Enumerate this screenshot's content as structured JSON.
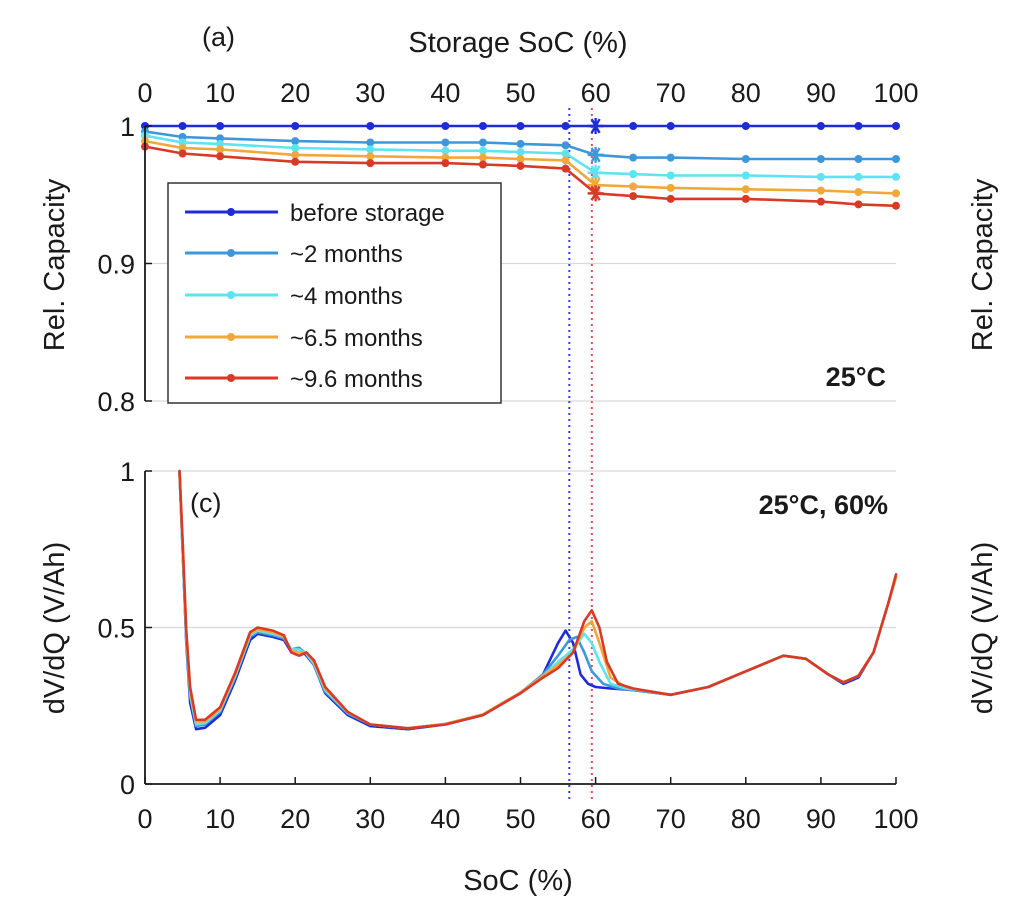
{
  "colors": {
    "before_storage": "#1f2bd6",
    "m2": "#3f97d9",
    "m4": "#5fe3f2",
    "m65": "#f1a83a",
    "m96": "#d93a28",
    "grid": "#d9d9d9",
    "axis": "#1a1a1a",
    "vline_blue": "#3a3aff",
    "vline_red": "#e05050"
  },
  "chart_data": [
    {
      "type": "line",
      "panel_label": "(a)",
      "title": "Storage SoC (%)",
      "ylabel": "Rel. Capacity",
      "annotation": "25°C",
      "xlim": [
        0,
        100
      ],
      "ylim": [
        0.8,
        1.0
      ],
      "xticks": [
        0,
        10,
        20,
        30,
        40,
        50,
        60,
        70,
        80,
        90,
        100
      ],
      "yticks": [
        0.8,
        0.9,
        1.0
      ],
      "ytick_labels": [
        "0.8",
        "0.9",
        "1"
      ],
      "x_axis_position": "top",
      "grid": "horizontal",
      "legend_position": "top-left",
      "x": [
        0,
        5,
        10,
        20,
        30,
        40,
        45,
        50,
        56,
        60,
        65,
        70,
        80,
        90,
        95,
        100
      ],
      "series": [
        {
          "name": "before storage",
          "color_key": "before_storage",
          "values": [
            1.0,
            1.0,
            1.0,
            1.0,
            1.0,
            1.0,
            1.0,
            1.0,
            1.0,
            1.0,
            1.0,
            1.0,
            1.0,
            1.0,
            1.0,
            1.0
          ]
        },
        {
          "name": "~2 months",
          "color_key": "m2",
          "values": [
            0.996,
            0.992,
            0.991,
            0.989,
            0.988,
            0.988,
            0.988,
            0.987,
            0.986,
            0.979,
            0.977,
            0.977,
            0.976,
            0.976,
            0.976,
            0.976
          ]
        },
        {
          "name": "~4 months",
          "color_key": "m4",
          "values": [
            0.993,
            0.988,
            0.987,
            0.984,
            0.983,
            0.982,
            0.982,
            0.981,
            0.98,
            0.966,
            0.965,
            0.964,
            0.964,
            0.963,
            0.963,
            0.963
          ]
        },
        {
          "name": "~6.5 months",
          "color_key": "m65",
          "values": [
            0.989,
            0.984,
            0.983,
            0.979,
            0.978,
            0.977,
            0.977,
            0.976,
            0.975,
            0.957,
            0.956,
            0.955,
            0.954,
            0.953,
            0.952,
            0.951
          ]
        },
        {
          "name": "~9.6 months",
          "color_key": "m96",
          "values": [
            0.985,
            0.98,
            0.978,
            0.974,
            0.973,
            0.973,
            0.972,
            0.971,
            0.969,
            0.951,
            0.949,
            0.947,
            0.947,
            0.945,
            0.943,
            0.942
          ]
        }
      ],
      "markers_asterisk_at_x": 60
    },
    {
      "type": "line",
      "panel_label": "(c)",
      "annotation": "25°C, 60%",
      "xlabel": "SoC (%)",
      "ylabel": "dV/dQ (V/Ah)",
      "xlim": [
        0,
        100
      ],
      "ylim": [
        0,
        1
      ],
      "xticks": [
        0,
        10,
        20,
        30,
        40,
        50,
        60,
        70,
        80,
        90,
        100
      ],
      "yticks": [
        0,
        0.5,
        1
      ],
      "ytick_labels": [
        "0",
        "0.5",
        "1"
      ],
      "grid": "horizontal",
      "vertical_lines": [
        {
          "x": 56.5,
          "color_key": "vline_blue",
          "style": "dotted"
        },
        {
          "x": 59.5,
          "color_key": "vline_red",
          "style": "dotted"
        }
      ],
      "series": [
        {
          "name": "before storage",
          "color_key": "before_storage",
          "points": [
            [
              4.6,
              1.0
            ],
            [
              5,
              0.75
            ],
            [
              5.5,
              0.45
            ],
            [
              6,
              0.26
            ],
            [
              6.8,
              0.175
            ],
            [
              8,
              0.18
            ],
            [
              10,
              0.22
            ],
            [
              12,
              0.33
            ],
            [
              14,
              0.46
            ],
            [
              15,
              0.48
            ],
            [
              17,
              0.47
            ],
            [
              18.5,
              0.46
            ],
            [
              19.5,
              0.42
            ],
            [
              20.5,
              0.435
            ],
            [
              21.5,
              0.41
            ],
            [
              22.5,
              0.38
            ],
            [
              24,
              0.29
            ],
            [
              27,
              0.22
            ],
            [
              30,
              0.185
            ],
            [
              35,
              0.175
            ],
            [
              40,
              0.19
            ],
            [
              45,
              0.22
            ],
            [
              50,
              0.29
            ],
            [
              53,
              0.35
            ],
            [
              55,
              0.45
            ],
            [
              56,
              0.49
            ],
            [
              57,
              0.45
            ],
            [
              58,
              0.35
            ],
            [
              59,
              0.32
            ],
            [
              60,
              0.31
            ],
            [
              62,
              0.305
            ],
            [
              65,
              0.3
            ],
            [
              70,
              0.285
            ],
            [
              75,
              0.31
            ],
            [
              80,
              0.36
            ],
            [
              85,
              0.41
            ],
            [
              88,
              0.4
            ],
            [
              91,
              0.35
            ],
            [
              93,
              0.32
            ],
            [
              95,
              0.34
            ],
            [
              97,
              0.42
            ],
            [
              99,
              0.58
            ],
            [
              100,
              0.66
            ]
          ]
        },
        {
          "name": "~2 months",
          "color_key": "m2",
          "points": [
            [
              4.6,
              1.0
            ],
            [
              5,
              0.75
            ],
            [
              5.5,
              0.46
            ],
            [
              6,
              0.28
            ],
            [
              6.8,
              0.185
            ],
            [
              8,
              0.19
            ],
            [
              10,
              0.23
            ],
            [
              12,
              0.34
            ],
            [
              14,
              0.47
            ],
            [
              15,
              0.485
            ],
            [
              17,
              0.475
            ],
            [
              18.5,
              0.465
            ],
            [
              19.5,
              0.43
            ],
            [
              20.5,
              0.435
            ],
            [
              21.5,
              0.415
            ],
            [
              22.5,
              0.38
            ],
            [
              24,
              0.295
            ],
            [
              27,
              0.225
            ],
            [
              30,
              0.19
            ],
            [
              35,
              0.178
            ],
            [
              40,
              0.192
            ],
            [
              45,
              0.222
            ],
            [
              50,
              0.292
            ],
            [
              53,
              0.35
            ],
            [
              55,
              0.41
            ],
            [
              56.5,
              0.46
            ],
            [
              57.5,
              0.47
            ],
            [
              58.5,
              0.42
            ],
            [
              59.5,
              0.36
            ],
            [
              61,
              0.32
            ],
            [
              63,
              0.305
            ],
            [
              65,
              0.3
            ],
            [
              70,
              0.285
            ],
            [
              75,
              0.31
            ],
            [
              80,
              0.36
            ],
            [
              85,
              0.41
            ],
            [
              88,
              0.4
            ],
            [
              91,
              0.35
            ],
            [
              93,
              0.325
            ],
            [
              95,
              0.345
            ],
            [
              97,
              0.42
            ],
            [
              99,
              0.58
            ],
            [
              100,
              0.66
            ]
          ]
        },
        {
          "name": "~4 months",
          "color_key": "m4",
          "points": [
            [
              4.6,
              1.0
            ],
            [
              5,
              0.76
            ],
            [
              5.5,
              0.47
            ],
            [
              6,
              0.29
            ],
            [
              6.8,
              0.19
            ],
            [
              8,
              0.195
            ],
            [
              10,
              0.235
            ],
            [
              12,
              0.345
            ],
            [
              14,
              0.475
            ],
            [
              15,
              0.49
            ],
            [
              17,
              0.48
            ],
            [
              18.5,
              0.47
            ],
            [
              19.5,
              0.43
            ],
            [
              20.5,
              0.43
            ],
            [
              21.5,
              0.415
            ],
            [
              22.5,
              0.385
            ],
            [
              24,
              0.3
            ],
            [
              27,
              0.228
            ],
            [
              30,
              0.19
            ],
            [
              35,
              0.178
            ],
            [
              40,
              0.192
            ],
            [
              45,
              0.222
            ],
            [
              50,
              0.292
            ],
            [
              53,
              0.345
            ],
            [
              55,
              0.39
            ],
            [
              57,
              0.43
            ],
            [
              58.5,
              0.48
            ],
            [
              59.5,
              0.45
            ],
            [
              60.5,
              0.39
            ],
            [
              62,
              0.32
            ],
            [
              64,
              0.305
            ],
            [
              66,
              0.3
            ],
            [
              70,
              0.285
            ],
            [
              75,
              0.31
            ],
            [
              80,
              0.36
            ],
            [
              85,
              0.41
            ],
            [
              88,
              0.4
            ],
            [
              91,
              0.35
            ],
            [
              93,
              0.325
            ],
            [
              95,
              0.345
            ],
            [
              97,
              0.42
            ],
            [
              99,
              0.58
            ],
            [
              100,
              0.66
            ]
          ]
        },
        {
          "name": "~6.5 months",
          "color_key": "m65",
          "points": [
            [
              4.6,
              1.0
            ],
            [
              5,
              0.77
            ],
            [
              5.5,
              0.48
            ],
            [
              6,
              0.3
            ],
            [
              6.8,
              0.2
            ],
            [
              8,
              0.2
            ],
            [
              10,
              0.24
            ],
            [
              12,
              0.35
            ],
            [
              14,
              0.48
            ],
            [
              15,
              0.495
            ],
            [
              17,
              0.485
            ],
            [
              18.5,
              0.47
            ],
            [
              19.5,
              0.425
            ],
            [
              20.5,
              0.42
            ],
            [
              21.5,
              0.42
            ],
            [
              22.5,
              0.39
            ],
            [
              24,
              0.305
            ],
            [
              27,
              0.23
            ],
            [
              30,
              0.19
            ],
            [
              35,
              0.178
            ],
            [
              40,
              0.192
            ],
            [
              45,
              0.222
            ],
            [
              50,
              0.292
            ],
            [
              53,
              0.345
            ],
            [
              55,
              0.38
            ],
            [
              57,
              0.42
            ],
            [
              58.5,
              0.5
            ],
            [
              59.5,
              0.52
            ],
            [
              60.5,
              0.45
            ],
            [
              62,
              0.34
            ],
            [
              64,
              0.31
            ],
            [
              66,
              0.3
            ],
            [
              70,
              0.285
            ],
            [
              75,
              0.31
            ],
            [
              80,
              0.36
            ],
            [
              85,
              0.41
            ],
            [
              88,
              0.4
            ],
            [
              91,
              0.35
            ],
            [
              93,
              0.325
            ],
            [
              95,
              0.345
            ],
            [
              97,
              0.42
            ],
            [
              99,
              0.58
            ],
            [
              100,
              0.66
            ]
          ]
        },
        {
          "name": "~9.6 months",
          "color_key": "m96",
          "points": [
            [
              4.6,
              1.0
            ],
            [
              5,
              0.78
            ],
            [
              5.5,
              0.49
            ],
            [
              6,
              0.31
            ],
            [
              6.8,
              0.205
            ],
            [
              8,
              0.205
            ],
            [
              10,
              0.245
            ],
            [
              12,
              0.355
            ],
            [
              14,
              0.485
            ],
            [
              15,
              0.5
            ],
            [
              17,
              0.49
            ],
            [
              18.5,
              0.475
            ],
            [
              19.5,
              0.42
            ],
            [
              20.5,
              0.41
            ],
            [
              21.5,
              0.42
            ],
            [
              22.5,
              0.395
            ],
            [
              24,
              0.31
            ],
            [
              27,
              0.23
            ],
            [
              30,
              0.19
            ],
            [
              35,
              0.178
            ],
            [
              40,
              0.19
            ],
            [
              45,
              0.22
            ],
            [
              50,
              0.29
            ],
            [
              53,
              0.34
            ],
            [
              55,
              0.37
            ],
            [
              57,
              0.42
            ],
            [
              58.5,
              0.52
            ],
            [
              59.5,
              0.555
            ],
            [
              60.5,
              0.5
            ],
            [
              61.5,
              0.39
            ],
            [
              63,
              0.32
            ],
            [
              65,
              0.305
            ],
            [
              70,
              0.285
            ],
            [
              75,
              0.31
            ],
            [
              80,
              0.36
            ],
            [
              85,
              0.41
            ],
            [
              88,
              0.4
            ],
            [
              91,
              0.35
            ],
            [
              93,
              0.325
            ],
            [
              95,
              0.345
            ],
            [
              97,
              0.42
            ],
            [
              99,
              0.58
            ],
            [
              100,
              0.67
            ]
          ]
        }
      ]
    }
  ]
}
